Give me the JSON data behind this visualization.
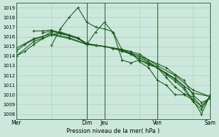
{
  "xlabel": "Pression niveau de la mer( hPa )",
  "background_color": "#cce8dd",
  "grid_color": "#aacfbf",
  "line_color": "#1a5c1a",
  "ylim": [
    1007.5,
    1019.5
  ],
  "yticks": [
    1008,
    1009,
    1010,
    1011,
    1012,
    1013,
    1014,
    1015,
    1016,
    1017,
    1018,
    1019
  ],
  "xlim": [
    0,
    132
  ],
  "x_tick_labels": [
    "Mer",
    "",
    "Dim",
    "Jeu",
    "",
    "Ven",
    "",
    "Sam"
  ],
  "x_tick_positions": [
    0,
    24,
    48,
    60,
    84,
    96,
    120,
    132
  ],
  "vlines": [
    0,
    48,
    60,
    96,
    132
  ],
  "series": [
    {
      "x": [
        0,
        12,
        24,
        36,
        48,
        60,
        72,
        84,
        96,
        108,
        120,
        132
      ],
      "y": [
        1014.0,
        1015.5,
        1016.2,
        1015.8,
        1015.2,
        1015.0,
        1014.7,
        1014.2,
        1013.0,
        1012.0,
        1010.5,
        1009.8
      ]
    },
    {
      "x": [
        0,
        12,
        24,
        36,
        48,
        60,
        72,
        84,
        96,
        108,
        120,
        132
      ],
      "y": [
        1014.8,
        1015.8,
        1016.3,
        1015.9,
        1015.2,
        1015.0,
        1014.6,
        1014.0,
        1012.8,
        1011.7,
        1010.2,
        1009.8
      ]
    },
    {
      "x": [
        0,
        6,
        12,
        18,
        24,
        30,
        36,
        42,
        48,
        54,
        60,
        66,
        72,
        78,
        84,
        90,
        96,
        102,
        108,
        114,
        120,
        126,
        132
      ],
      "y": [
        1014.0,
        1014.5,
        1015.2,
        1015.8,
        1016.2,
        1016.4,
        1016.1,
        1015.8,
        1015.3,
        1015.15,
        1015.0,
        1014.8,
        1014.6,
        1014.3,
        1014.0,
        1013.6,
        1013.2,
        1012.8,
        1012.1,
        1011.5,
        1010.0,
        1009.2,
        1009.6
      ]
    },
    {
      "x": [
        0,
        6,
        12,
        18,
        24,
        30,
        36,
        42,
        48,
        54,
        60,
        66,
        72,
        78,
        84,
        90,
        96,
        102,
        108,
        114,
        120,
        126,
        132
      ],
      "y": [
        1014.5,
        1015.2,
        1015.7,
        1016.0,
        1016.5,
        1016.5,
        1016.2,
        1015.9,
        1015.3,
        1015.1,
        1015.0,
        1014.8,
        1014.6,
        1014.2,
        1013.8,
        1013.3,
        1012.8,
        1012.2,
        1011.6,
        1010.8,
        1009.5,
        1008.8,
        1009.8
      ]
    },
    {
      "x": [
        12,
        18,
        24,
        30,
        36,
        42,
        48,
        54,
        60,
        66,
        72,
        78,
        84,
        90,
        96,
        102,
        108,
        114,
        120,
        126,
        132
      ],
      "y": [
        1016.6,
        1016.6,
        1016.7,
        1016.4,
        1016.1,
        1015.8,
        1015.3,
        1015.1,
        1015.0,
        1014.8,
        1014.5,
        1014.2,
        1013.6,
        1013.1,
        1012.8,
        1012.1,
        1011.4,
        1010.6,
        1009.3,
        1008.5,
        1009.9
      ]
    },
    {
      "x": [
        18,
        24,
        30,
        36,
        42,
        48,
        54,
        60,
        66,
        72,
        78,
        84,
        90,
        96,
        102,
        108,
        114,
        120,
        126,
        132
      ],
      "y": [
        1016.4,
        1016.6,
        1016.3,
        1016.1,
        1015.8,
        1015.2,
        1016.5,
        1017.5,
        1016.4,
        1013.6,
        1013.3,
        1013.6,
        1013.2,
        1012.8,
        1011.8,
        1010.8,
        1010.1,
        1009.8,
        1008.8,
        1009.9
      ]
    },
    {
      "x": [
        24,
        30,
        36,
        42,
        48,
        54,
        60,
        66,
        72,
        78,
        84,
        90,
        96,
        102,
        108,
        114,
        120,
        126,
        132
      ],
      "y": [
        1015.1,
        1016.8,
        1018.0,
        1019.0,
        1017.5,
        1017.0,
        1016.8,
        1016.5,
        1014.6,
        1014.5,
        1013.4,
        1012.8,
        1011.5,
        1011.0,
        1010.0,
        1010.0,
        1009.5,
        1008.0,
        1010.0
      ]
    }
  ]
}
